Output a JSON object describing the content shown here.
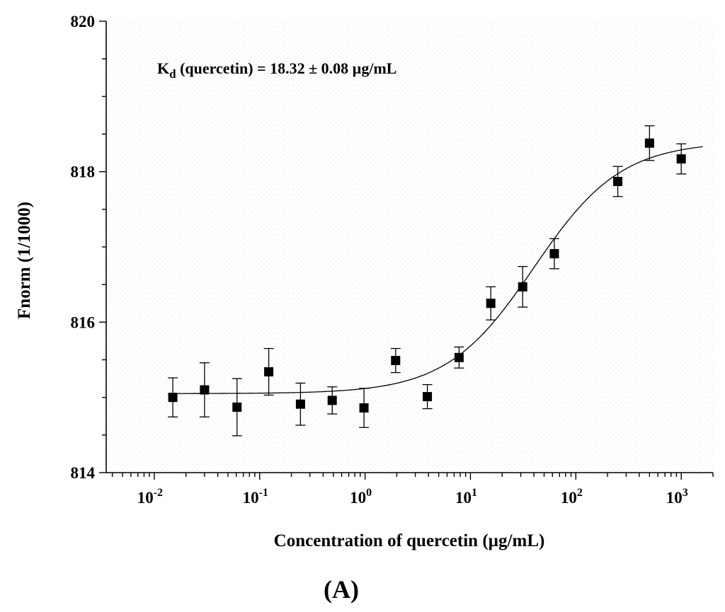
{
  "chart_data": {
    "type": "scatter",
    "title": "",
    "annotation": {
      "main": "K",
      "subscript": "d",
      "rest": " (quercetin) = 18.32 ± 0.08 µg/mL"
    },
    "panel_label": "(A)",
    "xlabel": "Concentration of quercetin (µg/mL)",
    "ylabel": "Fnorm (1/1000)",
    "x_scale": "log",
    "xlim": [
      0.0035,
      2000
    ],
    "ylim": [
      814,
      820
    ],
    "x_ticks": [
      {
        "value": 0.01,
        "base": "10",
        "exp": "-2"
      },
      {
        "value": 0.1,
        "base": "10",
        "exp": "-1"
      },
      {
        "value": 1,
        "base": "10",
        "exp": "0"
      },
      {
        "value": 10,
        "base": "10",
        "exp": "1"
      },
      {
        "value": 100,
        "base": "10",
        "exp": "2"
      },
      {
        "value": 1000,
        "base": "10",
        "exp": "3"
      }
    ],
    "y_ticks": [
      814,
      816,
      818,
      820
    ],
    "y_minor_step": 0.5,
    "grid": false,
    "background": "dotted",
    "colors": {
      "points": "#000000",
      "fit": "#000000",
      "axes": "#000000"
    },
    "marker": "square",
    "series": [
      {
        "style": "points-with-error-bars",
        "x": [
          0.015,
          0.03,
          0.061,
          0.122,
          0.244,
          0.488,
          0.977,
          1.95,
          3.9,
          7.8,
          15.6,
          31.3,
          62.5,
          250,
          500,
          1000
        ],
        "y": [
          815.0,
          815.1,
          814.87,
          815.34,
          814.91,
          814.96,
          814.86,
          815.49,
          815.01,
          815.53,
          816.25,
          816.47,
          816.91,
          817.87,
          818.38,
          818.17
        ],
        "err": [
          0.26,
          0.36,
          0.38,
          0.31,
          0.28,
          0.18,
          0.26,
          0.16,
          0.16,
          0.14,
          0.22,
          0.27,
          0.2,
          0.2,
          0.23,
          0.2
        ]
      }
    ],
    "fit_curve": {
      "model": "sigmoid in log10(x)",
      "bottom": 815.05,
      "top": 818.4,
      "midpoint": 40,
      "hill_slope": 1.05,
      "x_range": [
        0.015,
        1600
      ]
    }
  }
}
